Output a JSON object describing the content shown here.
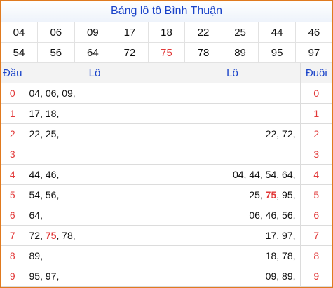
{
  "title": "Bảng lô tô Bình Thuận",
  "numbers_row1": [
    "04",
    "06",
    "09",
    "17",
    "18",
    "22",
    "25",
    "44",
    "46"
  ],
  "numbers_row2": [
    "54",
    "56",
    "64",
    "72",
    "75",
    "78",
    "89",
    "95",
    "97"
  ],
  "highlight_color": "#e23a3a",
  "headers": {
    "dau": "Đầu",
    "lo_left": "Lô",
    "lo_right": "Lô",
    "duoi": "Đuôi"
  },
  "rows": [
    {
      "idx": "0",
      "left": [
        "04",
        "06",
        "09"
      ],
      "right": []
    },
    {
      "idx": "1",
      "left": [
        "17",
        "18"
      ],
      "right": []
    },
    {
      "idx": "2",
      "left": [
        "22",
        "25"
      ],
      "right": [
        "22",
        "72"
      ]
    },
    {
      "idx": "3",
      "left": [],
      "right": []
    },
    {
      "idx": "4",
      "left": [
        "44",
        "46"
      ],
      "right": [
        "04",
        "44",
        "54",
        "64"
      ]
    },
    {
      "idx": "5",
      "left": [
        "54",
        "56"
      ],
      "right": [
        "25",
        "75",
        "95"
      ]
    },
    {
      "idx": "6",
      "left": [
        "64"
      ],
      "right": [
        "06",
        "46",
        "56"
      ]
    },
    {
      "idx": "7",
      "left": [
        "72",
        "75",
        "78"
      ],
      "right": [
        "17",
        "97"
      ]
    },
    {
      "idx": "8",
      "left": [
        "89"
      ],
      "right": [
        "18",
        "78"
      ]
    },
    {
      "idx": "9",
      "left": [
        "95",
        "97"
      ],
      "right": [
        "09",
        "89"
      ]
    }
  ],
  "highlighted": [
    "75"
  ]
}
